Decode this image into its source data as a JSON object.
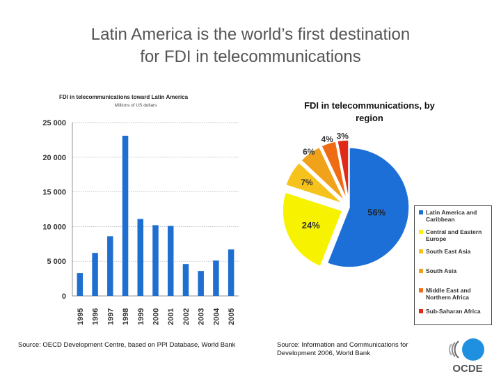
{
  "slide": {
    "title_line1": "Latin America is the world’s first destination",
    "title_line2": "for FDI in telecommunications"
  },
  "chart_data": [
    {
      "type": "bar",
      "title": "FDI in telecommunications toward Latin America",
      "subtitle": "Millions of US dollars",
      "categories": [
        "1995",
        "1996",
        "1997",
        "1998",
        "1999",
        "2000",
        "2001",
        "2002",
        "2003",
        "2004",
        "2005"
      ],
      "values": [
        3300,
        6200,
        8600,
        23100,
        11100,
        10200,
        10100,
        4600,
        3600,
        5100,
        6700
      ],
      "ylim": [
        0,
        25000
      ],
      "yticks": [
        0,
        5000,
        10000,
        15000,
        20000,
        25000
      ],
      "ytick_labels": [
        "0",
        "5 000",
        "10 000",
        "15 000",
        "20 000",
        "25 000"
      ],
      "grid": true,
      "color": "#1f6fd1"
    },
    {
      "type": "pie",
      "title": "FDI in telecommunications, by region",
      "slices": [
        {
          "label": "Latin America and Caribbean",
          "value": 56,
          "pct_label": "56%",
          "color": "#1c6fd6"
        },
        {
          "label": "Central and Eastern Europe",
          "value": 24,
          "pct_label": "24%",
          "color": "#f7f300"
        },
        {
          "label": "South East Asia",
          "value": 7,
          "pct_label": "7%",
          "color": "#f6c21c"
        },
        {
          "label": "South Asia",
          "value": 6,
          "pct_label": "6%",
          "color": "#f0a21a"
        },
        {
          "label": "Middle East and Northern Africa",
          "value": 4,
          "pct_label": "4%",
          "color": "#f06c14"
        },
        {
          "label": "Sub-Saharan Africa",
          "value": 3,
          "pct_label": "3%",
          "color": "#e02a18"
        }
      ],
      "legend_position": "right"
    }
  ],
  "sources": {
    "left": "Source: OECD Development Centre, based on PPI Database, World Bank",
    "right": "Source: Information and Communications for Development 2006, World Bank"
  },
  "logo": {
    "text": "OCDE",
    "color": "#1f8fe0"
  }
}
